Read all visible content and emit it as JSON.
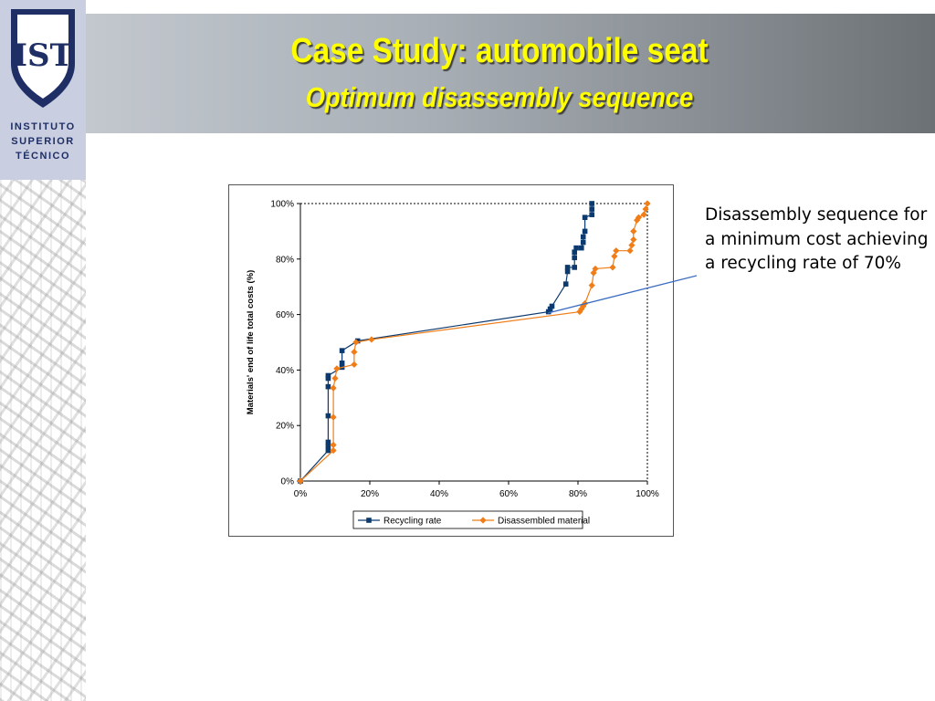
{
  "slide": {
    "title": "Case Study: automobile seat",
    "subtitle": "Optimum disassembly sequence",
    "annotation": "Disassembly sequence for a minimum cost achieving a recycling rate of 70%"
  },
  "logo": {
    "mark": "IST",
    "lines": [
      "INSTITUTO",
      "SUPERIOR",
      "TÉCNICO"
    ],
    "color": "#1f2f66"
  },
  "chart_data": {
    "type": "line",
    "xlabel": "",
    "ylabel": "Materials' end of life total costs (%)",
    "xlim": [
      0,
      100
    ],
    "ylim": [
      0,
      100
    ],
    "x_ticks": [
      "0%",
      "20%",
      "40%",
      "60%",
      "80%",
      "100%"
    ],
    "y_ticks": [
      "0%",
      "20%",
      "40%",
      "60%",
      "80%",
      "100%"
    ],
    "grid": false,
    "legend": "bottom",
    "series": [
      {
        "name": "Recycling rate",
        "color": "#0d3a6e",
        "marker": "square",
        "x": [
          0,
          8,
          8,
          8,
          8,
          8,
          8,
          8,
          12,
          12,
          12,
          16.5,
          71.5,
          72,
          72.5,
          76.5,
          77,
          77,
          79,
          79,
          79,
          79.5,
          81,
          81.5,
          81.5,
          82,
          82,
          84,
          84,
          84
        ],
        "y": [
          0,
          11,
          12.5,
          14,
          23.5,
          34,
          37,
          38,
          41,
          42.5,
          47,
          50.5,
          61,
          62,
          63,
          71,
          75.5,
          77,
          77,
          80.5,
          82.5,
          84,
          84,
          86,
          88,
          90,
          95,
          96,
          98,
          100
        ]
      },
      {
        "name": "Disassembled material",
        "color": "#f07d17",
        "marker": "diamond",
        "x": [
          0,
          9.5,
          9.5,
          9.5,
          9.5,
          10,
          10.5,
          15.5,
          15.5,
          16,
          20.5,
          80.5,
          81,
          81.5,
          82,
          84,
          84.5,
          85,
          90,
          90.5,
          91,
          95,
          95.5,
          96,
          96,
          97,
          97.5,
          99,
          99.5,
          100
        ],
        "y": [
          0,
          11,
          13,
          23,
          33.5,
          37,
          40.5,
          42,
          46.5,
          50,
          51,
          61,
          62,
          63,
          64,
          70.5,
          75,
          76.5,
          77,
          81,
          83,
          83,
          85,
          87,
          90,
          94,
          95,
          96,
          98,
          100
        ]
      }
    ]
  }
}
